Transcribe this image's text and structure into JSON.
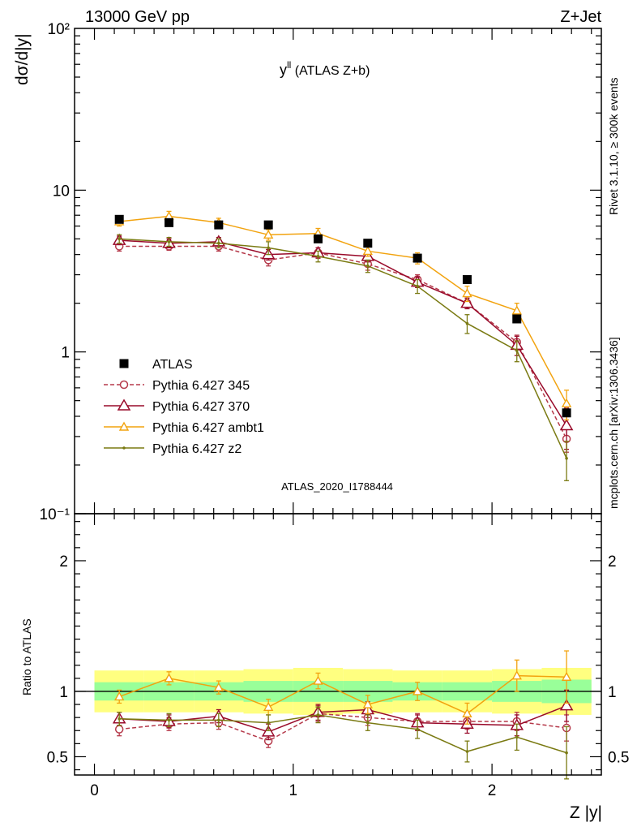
{
  "header": {
    "left": "13000 GeV pp",
    "right": "Z+Jet"
  },
  "plot_title_main": "y",
  "plot_title_sup": "ll",
  "plot_title_rest": " (ATLAS Z+b)",
  "watermark": "ATLAS_2020_I1788444",
  "side_text_top": "Rivet 3.1.10, ≥ 300k events",
  "side_text_bottom": "mcplots.cern.ch [arXiv:1306.3436]",
  "colors": {
    "ATLAS": "#000000",
    "p345": "#b5394a",
    "p370": "#990a2a",
    "ambt1": "#f2a30f",
    "z2": "#7a7a12",
    "band_inner": "#99ff99",
    "band_outer": "#ffff80"
  },
  "chart_data": [
    {
      "type": "line",
      "ylabel": "dσ/d|y|",
      "y_scale": "log",
      "ylim": [
        0.1,
        100
      ],
      "xlim": [
        -0.1,
        2.55
      ],
      "y_ticks": [
        "10⁻¹",
        "1",
        "10",
        "10²"
      ],
      "legend_position": "bottom-left",
      "x": [
        0.125,
        0.375,
        0.625,
        0.875,
        1.125,
        1.375,
        1.625,
        1.875,
        2.125,
        2.375
      ],
      "series": [
        {
          "name": "ATLAS",
          "key": "ATLAS",
          "marker": "square",
          "values": [
            6.6,
            6.3,
            6.1,
            6.1,
            5.0,
            4.7,
            3.8,
            2.8,
            1.6,
            0.42
          ]
        },
        {
          "name": "Pythia 6.427 345",
          "key": "p345",
          "marker": "circle",
          "dashed": true,
          "values": [
            4.5,
            4.5,
            4.5,
            3.7,
            4.1,
            3.5,
            2.8,
            2.0,
            1.15,
            0.29
          ],
          "err": [
            0.3,
            0.25,
            0.3,
            0.3,
            0.3,
            0.3,
            0.2,
            0.15,
            0.12,
            0.05
          ]
        },
        {
          "name": "Pythia 6.427 370",
          "key": "p370",
          "marker": "triangle",
          "values": [
            4.9,
            4.7,
            4.8,
            4.0,
            4.1,
            3.9,
            2.7,
            2.0,
            1.1,
            0.35
          ],
          "err": [
            0.3,
            0.3,
            0.3,
            0.3,
            0.3,
            0.3,
            0.2,
            0.15,
            0.15,
            0.1
          ]
        },
        {
          "name": "Pythia 6.427 ambt1",
          "key": "ambt1",
          "marker": "triangle-small",
          "values": [
            6.4,
            6.9,
            6.3,
            5.3,
            5.4,
            4.2,
            3.8,
            2.3,
            1.8,
            0.48
          ],
          "err": [
            0.4,
            0.5,
            0.4,
            0.4,
            0.4,
            0.3,
            0.3,
            0.25,
            0.2,
            0.1
          ]
        },
        {
          "name": "Pythia 6.427 z2",
          "key": "z2",
          "marker": "dot",
          "values": [
            5.0,
            4.8,
            4.7,
            4.4,
            3.9,
            3.4,
            2.55,
            1.5,
            1.02,
            0.22
          ],
          "err": [
            0.3,
            0.3,
            0.3,
            0.4,
            0.3,
            0.3,
            0.25,
            0.2,
            0.15,
            0.06
          ]
        }
      ]
    },
    {
      "type": "line",
      "xlabel": "Z |y|",
      "ylabel": "Ratio to ATLAS",
      "ylim": [
        0.36,
        2.36
      ],
      "xlim": [
        -0.1,
        2.55
      ],
      "x_ticks": [
        0,
        1,
        2
      ],
      "y_ticks": [
        0.5,
        1,
        2
      ],
      "reference_line": 1,
      "x_edges": [
        0,
        0.25,
        0.5,
        0.75,
        1.0,
        1.25,
        1.5,
        1.75,
        2.0,
        2.25,
        2.5
      ],
      "band_inner_halfwidth": [
        0.07,
        0.07,
        0.07,
        0.08,
        0.08,
        0.08,
        0.07,
        0.07,
        0.08,
        0.09
      ],
      "band_outer_halfwidth": [
        0.16,
        0.16,
        0.16,
        0.17,
        0.18,
        0.17,
        0.16,
        0.16,
        0.17,
        0.18
      ],
      "x": [
        0.125,
        0.375,
        0.625,
        0.875,
        1.125,
        1.375,
        1.625,
        1.875,
        2.125,
        2.375
      ],
      "series": [
        {
          "key": "p345",
          "marker": "circle",
          "dashed": true,
          "values": [
            0.71,
            0.75,
            0.76,
            0.62,
            0.83,
            0.8,
            0.77,
            0.77,
            0.77,
            0.72
          ],
          "err": [
            0.05,
            0.05,
            0.05,
            0.05,
            0.06,
            0.06,
            0.06,
            0.06,
            0.07,
            0.1
          ]
        },
        {
          "key": "p370",
          "marker": "triangle",
          "values": [
            0.79,
            0.77,
            0.81,
            0.69,
            0.84,
            0.86,
            0.76,
            0.75,
            0.74,
            0.89
          ],
          "err": [
            0.05,
            0.05,
            0.05,
            0.06,
            0.06,
            0.06,
            0.06,
            0.07,
            0.08,
            0.12
          ]
        },
        {
          "key": "ambt1",
          "marker": "triangle-small",
          "values": [
            0.96,
            1.1,
            1.03,
            0.88,
            1.08,
            0.9,
            1.0,
            0.83,
            1.12,
            1.11
          ],
          "err": [
            0.05,
            0.05,
            0.05,
            0.06,
            0.06,
            0.07,
            0.07,
            0.08,
            0.12,
            0.2
          ]
        },
        {
          "key": "z2",
          "marker": "dot",
          "values": [
            0.79,
            0.78,
            0.78,
            0.76,
            0.82,
            0.76,
            0.71,
            0.54,
            0.65,
            0.53
          ],
          "err": [
            0.05,
            0.05,
            0.05,
            0.06,
            0.06,
            0.06,
            0.07,
            0.08,
            0.1,
            0.2
          ]
        }
      ]
    }
  ]
}
